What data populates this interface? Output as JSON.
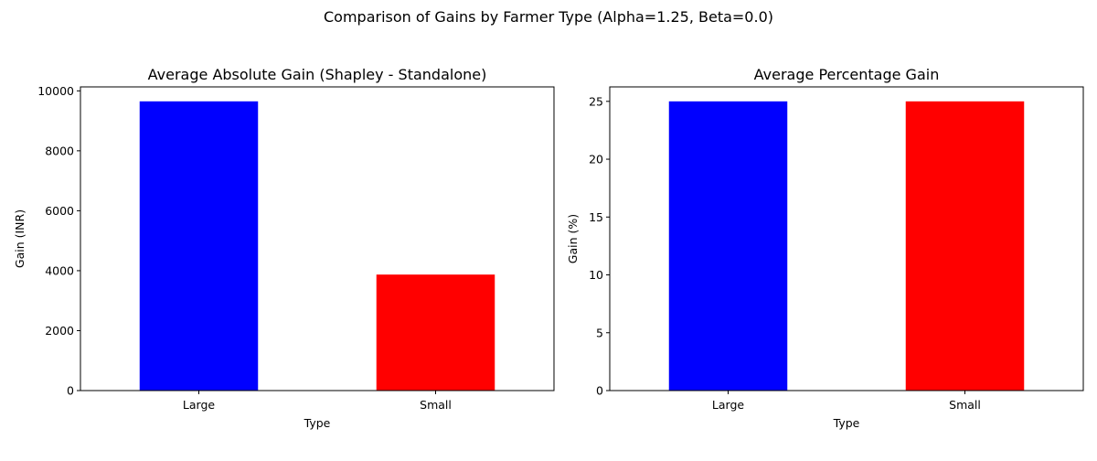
{
  "figure": {
    "suptitle": "Comparison of Gains by Farmer Type (Alpha=1.25, Beta=0.0)"
  },
  "chart_data": [
    {
      "type": "bar",
      "title": "Average Absolute Gain (Shapley - Standalone)",
      "xlabel": "Type",
      "ylabel": "Gain (INR)",
      "categories": [
        "Large",
        "Small"
      ],
      "values": [
        9650,
        3870
      ],
      "colors": [
        "#0000ff",
        "#ff0000"
      ],
      "ylim": [
        0,
        10132
      ],
      "yticks": [
        0,
        2000,
        4000,
        6000,
        8000,
        10000
      ],
      "grid": false,
      "legend": "none"
    },
    {
      "type": "bar",
      "title": "Average Percentage Gain",
      "xlabel": "Type",
      "ylabel": "Gain (%)",
      "categories": [
        "Large",
        "Small"
      ],
      "values": [
        25,
        25
      ],
      "colors": [
        "#0000ff",
        "#ff0000"
      ],
      "ylim": [
        0,
        26.25
      ],
      "yticks": [
        0,
        5,
        10,
        15,
        20,
        25
      ],
      "grid": false,
      "legend": "none"
    }
  ]
}
